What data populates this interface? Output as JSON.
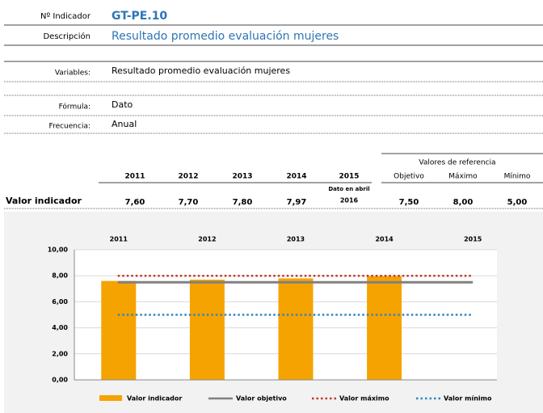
{
  "header": {
    "indicator_label": "Nº Indicador",
    "indicator": "GT-PE.10",
    "description_label": "Descripción",
    "description": "Resultado promedio evaluación mujeres"
  },
  "fields": {
    "variables_label": "Variables:",
    "variables": "Resultado promedio evaluación mujeres",
    "formula_label": "Fórmula:",
    "formula": "Dato",
    "frequency_label": "Frecuencia:",
    "frequency": "Anual"
  },
  "table": {
    "reference_header": "Valores de referencia",
    "years": [
      "2011",
      "2012",
      "2013",
      "2014",
      "2015"
    ],
    "reference_columns": [
      "Objetivo",
      "Máximo",
      "Mínimo"
    ],
    "note": [
      "Dato en abril",
      "2016"
    ],
    "row_label": "Valor indicador",
    "values": [
      "7,60",
      "7,70",
      "7,80",
      "7,97"
    ],
    "reference_values": [
      "7,50",
      "8,00",
      "5,00"
    ]
  },
  "chart_data": {
    "type": "bar",
    "categories": [
      "2011",
      "2012",
      "2013",
      "2014",
      "2015"
    ],
    "series": [
      {
        "name": "Valor indicador",
        "type": "bar",
        "color": "#f5a300",
        "values": [
          7.6,
          7.7,
          7.8,
          7.97,
          null
        ]
      },
      {
        "name": "Valor objetivo",
        "type": "line",
        "style": "solid",
        "color": "#808080",
        "values": [
          7.5,
          7.5,
          7.5,
          7.5,
          7.5
        ]
      },
      {
        "name": "Valor máximo",
        "type": "line",
        "style": "dotted",
        "color": "#c0392b",
        "values": [
          8,
          8,
          8,
          8,
          8
        ]
      },
      {
        "name": "Valor mínimo",
        "type": "line",
        "style": "dotted",
        "color": "#2e86c1",
        "values": [
          5,
          5,
          5,
          5,
          5
        ]
      }
    ],
    "ylim": [
      0,
      10
    ],
    "yticks": [
      {
        "value": 0,
        "label": "0,00"
      },
      {
        "value": 2,
        "label": "2,00"
      },
      {
        "value": 4,
        "label": "4,00"
      },
      {
        "value": 6,
        "label": "6,00"
      },
      {
        "value": 8,
        "label": "8,00"
      },
      {
        "value": 10,
        "label": "10,00"
      }
    ],
    "grid": true
  }
}
